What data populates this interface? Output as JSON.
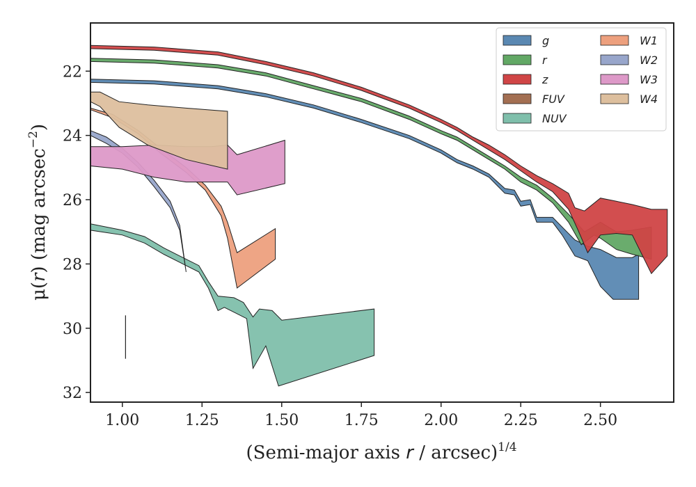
{
  "chart_data": {
    "type": "area",
    "xlabel": {
      "main": "(Semi-major axis ",
      "var": "r",
      "rest": " / arcsec)",
      "sup": "1/4"
    },
    "ylabel": {
      "pre": "μ(",
      "var": "r",
      "post": ") (mag arcsec",
      "sup": "−2",
      "end": ")"
    },
    "xlim": [
      0.9,
      2.73
    ],
    "ylim": [
      32.3,
      20.5
    ],
    "y_inverted": true,
    "xticks": [
      1.0,
      1.25,
      1.5,
      1.75,
      2.0,
      2.25,
      2.5
    ],
    "xtick_labels": [
      "1.00",
      "1.25",
      "1.50",
      "1.75",
      "2.00",
      "2.25",
      "2.50"
    ],
    "yticks": [
      22,
      24,
      26,
      28,
      30,
      32
    ],
    "ytick_labels": [
      "22",
      "24",
      "26",
      "28",
      "30",
      "32"
    ],
    "grid": false,
    "legend_position": "top-right",
    "legend_columns": 2,
    "error_bar": {
      "x": 1.01,
      "y_top": 29.6,
      "y_bottom": 30.95
    },
    "series": [
      {
        "name": "FUV",
        "color": "#a36f52",
        "upper": [],
        "lower": []
      },
      {
        "name": "NUV",
        "color": "#7fbfab",
        "upper": [
          [
            0.9,
            26.75
          ],
          [
            1.0,
            26.95
          ],
          [
            1.07,
            27.15
          ],
          [
            1.13,
            27.5
          ],
          [
            1.18,
            27.75
          ],
          [
            1.24,
            28.05
          ],
          [
            1.27,
            28.55
          ],
          [
            1.3,
            29.0
          ],
          [
            1.35,
            29.05
          ],
          [
            1.38,
            29.2
          ],
          [
            1.41,
            29.65
          ],
          [
            1.43,
            29.4
          ],
          [
            1.47,
            29.45
          ],
          [
            1.5,
            29.75
          ],
          [
            1.79,
            29.4
          ]
        ],
        "lower": [
          [
            0.9,
            26.95
          ],
          [
            1.0,
            27.1
          ],
          [
            1.07,
            27.35
          ],
          [
            1.13,
            27.7
          ],
          [
            1.18,
            27.95
          ],
          [
            1.24,
            28.25
          ],
          [
            1.27,
            28.75
          ],
          [
            1.3,
            29.45
          ],
          [
            1.32,
            29.35
          ],
          [
            1.35,
            29.5
          ],
          [
            1.39,
            29.7
          ],
          [
            1.41,
            31.25
          ],
          [
            1.45,
            30.55
          ],
          [
            1.49,
            31.8
          ],
          [
            1.79,
            30.85
          ]
        ]
      },
      {
        "name": "W2",
        "color": "#98a6cb",
        "upper": [
          [
            0.9,
            23.85
          ],
          [
            0.95,
            24.05
          ],
          [
            1.0,
            24.4
          ],
          [
            1.05,
            24.85
          ],
          [
            1.1,
            25.4
          ],
          [
            1.15,
            26.05
          ],
          [
            1.18,
            26.8
          ],
          [
            1.2,
            28.25
          ]
        ],
        "lower": [
          [
            0.9,
            24.0
          ],
          [
            0.95,
            24.25
          ],
          [
            1.0,
            24.55
          ],
          [
            1.05,
            25.0
          ],
          [
            1.1,
            25.6
          ],
          [
            1.15,
            26.25
          ],
          [
            1.18,
            26.95
          ],
          [
            1.2,
            28.25
          ]
        ]
      },
      {
        "name": "W1",
        "color": "#eda07e",
        "upper": [
          [
            0.9,
            23.15
          ],
          [
            0.97,
            23.35
          ],
          [
            1.05,
            23.85
          ],
          [
            1.12,
            24.4
          ],
          [
            1.2,
            25.0
          ],
          [
            1.26,
            25.55
          ],
          [
            1.31,
            26.2
          ],
          [
            1.33,
            26.7
          ],
          [
            1.36,
            27.65
          ],
          [
            1.48,
            26.9
          ]
        ],
        "lower": [
          [
            0.9,
            23.2
          ],
          [
            0.97,
            23.45
          ],
          [
            1.05,
            23.95
          ],
          [
            1.12,
            24.55
          ],
          [
            1.2,
            25.15
          ],
          [
            1.26,
            25.7
          ],
          [
            1.31,
            26.5
          ],
          [
            1.33,
            27.2
          ],
          [
            1.36,
            28.75
          ],
          [
            1.48,
            27.85
          ]
        ]
      },
      {
        "name": "W3",
        "color": "#dd99c8",
        "upper": [
          [
            0.9,
            24.35
          ],
          [
            1.0,
            24.35
          ],
          [
            1.1,
            24.3
          ],
          [
            1.2,
            24.35
          ],
          [
            1.28,
            24.35
          ],
          [
            1.33,
            24.3
          ],
          [
            1.36,
            24.6
          ],
          [
            1.51,
            24.15
          ]
        ],
        "lower": [
          [
            0.9,
            24.95
          ],
          [
            1.0,
            25.05
          ],
          [
            1.1,
            25.3
          ],
          [
            1.2,
            25.45
          ],
          [
            1.28,
            25.45
          ],
          [
            1.33,
            25.45
          ],
          [
            1.36,
            25.85
          ],
          [
            1.51,
            25.5
          ]
        ]
      },
      {
        "name": "W4",
        "color": "#ddbf9e",
        "upper": [
          [
            0.9,
            22.65
          ],
          [
            0.93,
            22.65
          ],
          [
            0.99,
            22.95
          ],
          [
            1.08,
            23.05
          ],
          [
            1.2,
            23.15
          ],
          [
            1.33,
            23.25
          ]
        ],
        "lower": [
          [
            0.9,
            22.95
          ],
          [
            0.93,
            23.1
          ],
          [
            0.99,
            23.75
          ],
          [
            1.08,
            24.3
          ],
          [
            1.2,
            24.75
          ],
          [
            1.33,
            25.05
          ]
        ]
      },
      {
        "name": "g",
        "color": "#5a88b2",
        "upper": [
          [
            0.9,
            22.25
          ],
          [
            1.1,
            22.3
          ],
          [
            1.3,
            22.45
          ],
          [
            1.45,
            22.7
          ],
          [
            1.6,
            23.05
          ],
          [
            1.75,
            23.5
          ],
          [
            1.9,
            24.0
          ],
          [
            2.0,
            24.45
          ],
          [
            2.05,
            24.75
          ],
          [
            2.1,
            24.95
          ],
          [
            2.15,
            25.2
          ],
          [
            2.2,
            25.65
          ],
          [
            2.23,
            25.7
          ],
          [
            2.25,
            26.05
          ],
          [
            2.28,
            26.0
          ],
          [
            2.3,
            26.55
          ],
          [
            2.35,
            26.55
          ],
          [
            2.38,
            26.85
          ],
          [
            2.42,
            27.25
          ],
          [
            2.46,
            27.45
          ],
          [
            2.5,
            27.55
          ],
          [
            2.55,
            27.8
          ],
          [
            2.6,
            27.8
          ],
          [
            2.62,
            27.7
          ]
        ],
        "lower": [
          [
            0.9,
            22.35
          ],
          [
            1.1,
            22.4
          ],
          [
            1.3,
            22.55
          ],
          [
            1.45,
            22.8
          ],
          [
            1.6,
            23.15
          ],
          [
            1.75,
            23.6
          ],
          [
            1.9,
            24.1
          ],
          [
            2.0,
            24.55
          ],
          [
            2.05,
            24.85
          ],
          [
            2.1,
            25.05
          ],
          [
            2.15,
            25.3
          ],
          [
            2.2,
            25.8
          ],
          [
            2.23,
            25.85
          ],
          [
            2.25,
            26.2
          ],
          [
            2.28,
            26.15
          ],
          [
            2.3,
            26.7
          ],
          [
            2.35,
            26.7
          ],
          [
            2.38,
            27.1
          ],
          [
            2.42,
            27.75
          ],
          [
            2.46,
            27.9
          ],
          [
            2.5,
            28.7
          ],
          [
            2.54,
            29.1
          ],
          [
            2.6,
            29.1
          ],
          [
            2.62,
            29.1
          ]
        ]
      },
      {
        "name": "r",
        "color": "#62a865",
        "upper": [
          [
            0.9,
            21.6
          ],
          [
            1.1,
            21.65
          ],
          [
            1.3,
            21.8
          ],
          [
            1.45,
            22.05
          ],
          [
            1.6,
            22.45
          ],
          [
            1.75,
            22.85
          ],
          [
            1.9,
            23.4
          ],
          [
            2.0,
            23.85
          ],
          [
            2.05,
            24.05
          ],
          [
            2.1,
            24.35
          ],
          [
            2.15,
            24.65
          ],
          [
            2.2,
            24.95
          ],
          [
            2.25,
            25.3
          ],
          [
            2.3,
            25.55
          ],
          [
            2.35,
            25.95
          ],
          [
            2.4,
            26.45
          ],
          [
            2.45,
            27.0
          ],
          [
            2.5,
            26.7
          ],
          [
            2.55,
            27.0
          ],
          [
            2.6,
            26.95
          ],
          [
            2.66,
            26.85
          ]
        ],
        "lower": [
          [
            0.9,
            21.7
          ],
          [
            1.1,
            21.75
          ],
          [
            1.3,
            21.9
          ],
          [
            1.45,
            22.15
          ],
          [
            1.6,
            22.55
          ],
          [
            1.75,
            22.95
          ],
          [
            1.9,
            23.5
          ],
          [
            2.0,
            23.95
          ],
          [
            2.05,
            24.15
          ],
          [
            2.1,
            24.45
          ],
          [
            2.15,
            24.75
          ],
          [
            2.2,
            25.05
          ],
          [
            2.25,
            25.45
          ],
          [
            2.3,
            25.7
          ],
          [
            2.35,
            26.1
          ],
          [
            2.4,
            26.7
          ],
          [
            2.44,
            27.4
          ],
          [
            2.48,
            27.1
          ],
          [
            2.5,
            27.2
          ],
          [
            2.55,
            27.55
          ],
          [
            2.6,
            27.7
          ],
          [
            2.66,
            27.85
          ]
        ]
      },
      {
        "name": "z",
        "color": "#d04546",
        "upper": [
          [
            0.9,
            21.2
          ],
          [
            1.1,
            21.25
          ],
          [
            1.3,
            21.4
          ],
          [
            1.45,
            21.7
          ],
          [
            1.6,
            22.05
          ],
          [
            1.75,
            22.5
          ],
          [
            1.9,
            23.05
          ],
          [
            2.0,
            23.5
          ],
          [
            2.05,
            23.75
          ],
          [
            2.1,
            24.05
          ],
          [
            2.15,
            24.3
          ],
          [
            2.2,
            24.6
          ],
          [
            2.25,
            24.95
          ],
          [
            2.3,
            25.25
          ],
          [
            2.35,
            25.5
          ],
          [
            2.4,
            25.8
          ],
          [
            2.42,
            26.25
          ],
          [
            2.45,
            26.35
          ],
          [
            2.5,
            25.95
          ],
          [
            2.55,
            26.05
          ],
          [
            2.6,
            26.15
          ],
          [
            2.66,
            26.3
          ],
          [
            2.71,
            26.3
          ]
        ],
        "lower": [
          [
            0.9,
            21.3
          ],
          [
            1.1,
            21.35
          ],
          [
            1.3,
            21.5
          ],
          [
            1.45,
            21.8
          ],
          [
            1.6,
            22.15
          ],
          [
            1.75,
            22.6
          ],
          [
            1.9,
            23.15
          ],
          [
            2.0,
            23.6
          ],
          [
            2.05,
            23.85
          ],
          [
            2.1,
            24.15
          ],
          [
            2.15,
            24.45
          ],
          [
            2.2,
            24.75
          ],
          [
            2.25,
            25.1
          ],
          [
            2.3,
            25.45
          ],
          [
            2.35,
            25.75
          ],
          [
            2.4,
            26.3
          ],
          [
            2.43,
            26.95
          ],
          [
            2.46,
            27.65
          ],
          [
            2.5,
            27.1
          ],
          [
            2.55,
            27.05
          ],
          [
            2.6,
            27.1
          ],
          [
            2.66,
            28.3
          ],
          [
            2.71,
            27.75
          ]
        ]
      }
    ]
  }
}
